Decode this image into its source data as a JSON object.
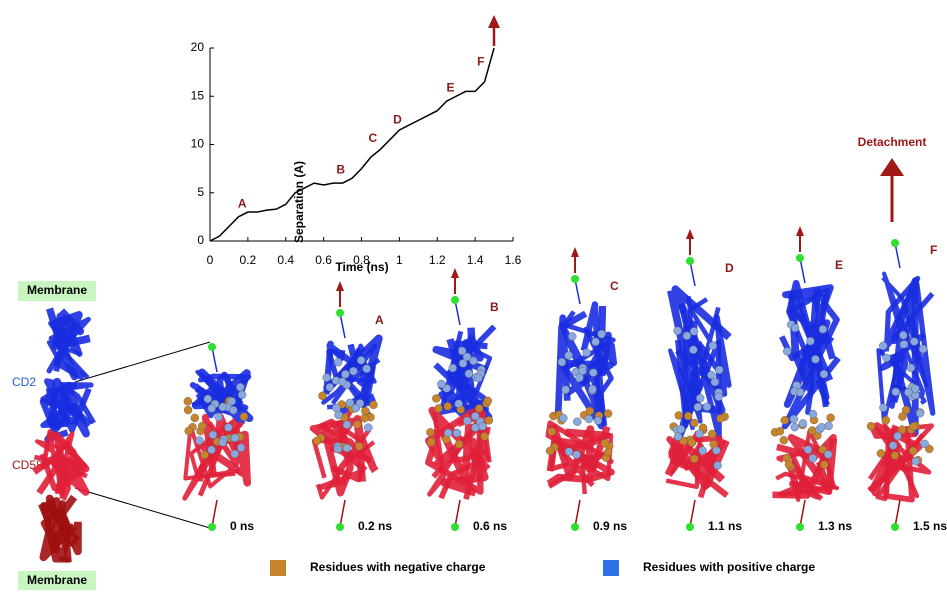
{
  "chart_data": {
    "type": "line",
    "x_label": "Time (ns)",
    "y_label": "Separation (A)",
    "x": [
      0,
      0.05,
      0.1,
      0.15,
      0.2,
      0.25,
      0.3,
      0.35,
      0.4,
      0.45,
      0.5,
      0.55,
      0.6,
      0.65,
      0.7,
      0.75,
      0.8,
      0.85,
      0.9,
      0.95,
      1.0,
      1.05,
      1.1,
      1.15,
      1.2,
      1.25,
      1.3,
      1.35,
      1.4,
      1.45,
      1.5
    ],
    "values": [
      0,
      0.5,
      1.5,
      2.5,
      3,
      3,
      3.2,
      3.3,
      3.8,
      5,
      5.5,
      6,
      5.8,
      6,
      6,
      6.5,
      7.5,
      8.7,
      9.5,
      10.5,
      11.5,
      12,
      12.5,
      13,
      13.5,
      14.5,
      15,
      15.5,
      15.5,
      16.5,
      20
    ],
    "color": "#000000",
    "xlim": [
      0,
      1.6
    ],
    "xticks": [
      0,
      0.2,
      0.4,
      0.6,
      0.8,
      1,
      1.2,
      1.4,
      1.6
    ],
    "ylim": [
      0,
      20
    ],
    "yticks": [
      0,
      5,
      10,
      15,
      20
    ],
    "annotations": [
      {
        "text": "A",
        "x": 0.17,
        "y": 3.8
      },
      {
        "text": "B",
        "x": 0.69,
        "y": 7.3
      },
      {
        "text": "C",
        "x": 0.86,
        "y": 10.6
      },
      {
        "text": "D",
        "x": 0.99,
        "y": 12.5
      },
      {
        "text": "E",
        "x": 1.27,
        "y": 15.8
      },
      {
        "text": "F",
        "x": 1.43,
        "y": 18.5
      }
    ]
  },
  "figure": {
    "membrane_top": "Membrane",
    "membrane_bottom": "Membrane",
    "cd2": "CD2",
    "cd58": "CD58",
    "detachment": "Detachment",
    "snapshots": [
      {
        "time": "0 ns"
      },
      {
        "letter": "A",
        "time": "0.2 ns"
      },
      {
        "letter": "B",
        "time": "0.6 ns"
      },
      {
        "letter": "C",
        "time": "0.9 ns"
      },
      {
        "letter": "D",
        "time": "1.1 ns"
      },
      {
        "letter": "E",
        "time": "1.3 ns"
      },
      {
        "letter": "F",
        "time": "1.5 ns"
      }
    ],
    "legend": [
      {
        "label": "Residues with negative charge",
        "color": "#c8842a"
      },
      {
        "label": "Residues with positive charge",
        "color": "#2f6fe8"
      }
    ]
  }
}
